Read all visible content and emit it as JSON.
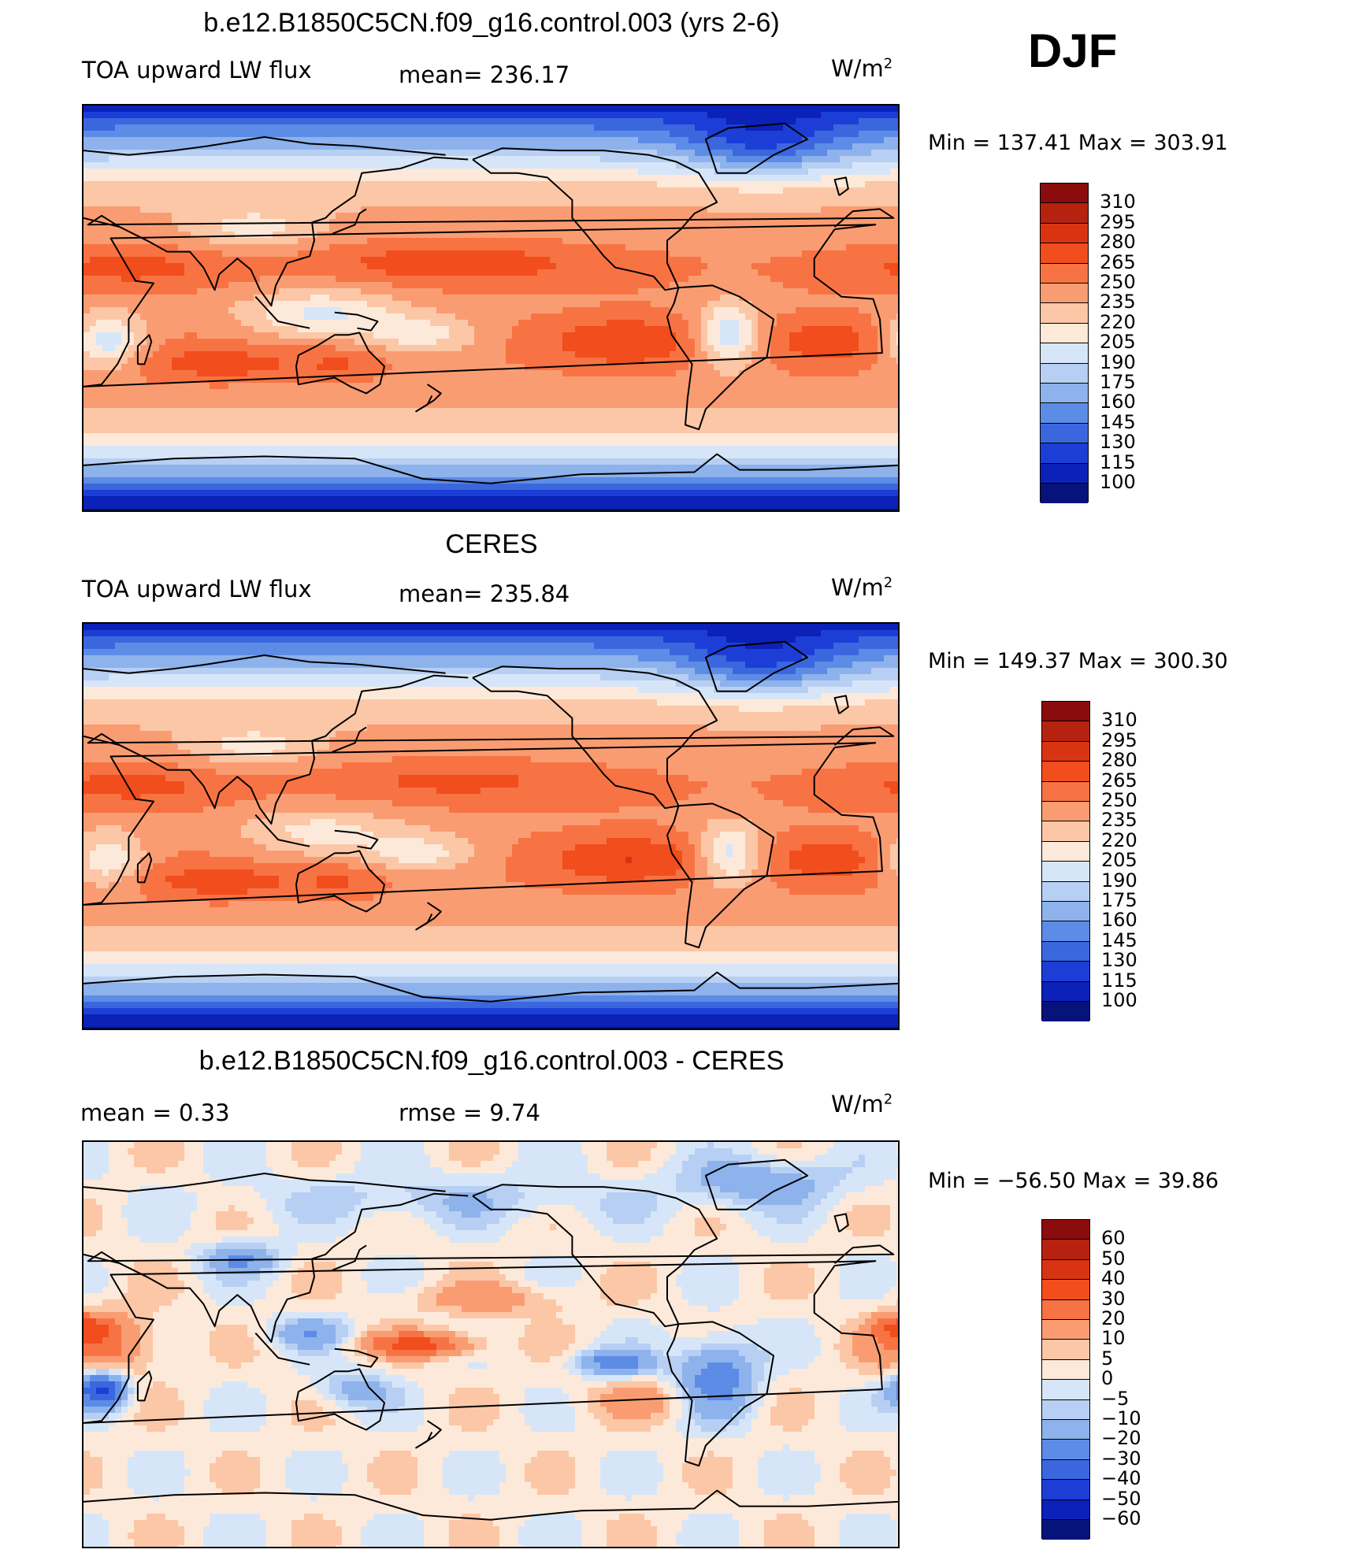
{
  "season": "DJF",
  "units_base": "W/m",
  "units_exp": "2",
  "panels": [
    {
      "title": "b.e12.B1850C5CN.f09_g16.control.003 (yrs 2-6)",
      "left_label": "TOA upward LW flux",
      "middle_label": "mean= 236.17",
      "minmax": "Min  =  137.41  Max  =  303.91",
      "colorbar": {
        "labels": [
          "310",
          "295",
          "280",
          "265",
          "250",
          "235",
          "220",
          "205",
          "190",
          "175",
          "160",
          "145",
          "130",
          "115",
          "100"
        ],
        "colors": [
          "#8b0c0c",
          "#b62210",
          "#d93412",
          "#f24d1d",
          "#f87343",
          "#fa9c72",
          "#fcc7a6",
          "#fde9d9",
          "#d6e6f8",
          "#b7cff3",
          "#8db2ec",
          "#5d8ce6",
          "#3b67de",
          "#1c3ed6",
          "#0b21b8",
          "#05137a"
        ]
      },
      "scalar_field": "model"
    },
    {
      "title": "CERES",
      "left_label": "TOA upward LW flux",
      "middle_label": "mean= 235.84",
      "minmax": "Min  =  149.37  Max  =  300.30",
      "colorbar": {
        "labels": [
          "310",
          "295",
          "280",
          "265",
          "250",
          "235",
          "220",
          "205",
          "190",
          "175",
          "160",
          "145",
          "130",
          "115",
          "100"
        ],
        "colors": [
          "#8b0c0c",
          "#b62210",
          "#d93412",
          "#f24d1d",
          "#f87343",
          "#fa9c72",
          "#fcc7a6",
          "#fde9d9",
          "#d6e6f8",
          "#b7cff3",
          "#8db2ec",
          "#5d8ce6",
          "#3b67de",
          "#1c3ed6",
          "#0b21b8",
          "#05137a"
        ]
      },
      "scalar_field": "obs"
    },
    {
      "title": "b.e12.B1850C5CN.f09_g16.control.003 - CERES",
      "left_label": "mean =     0.33",
      "middle_label": "rmse =     9.74",
      "minmax": "Min  =  −56.50  Max  =    39.86",
      "colorbar": {
        "labels": [
          "60",
          "50",
          "40",
          "30",
          "20",
          "10",
          "5",
          "0",
          "−5",
          "−10",
          "−20",
          "−30",
          "−40",
          "−50",
          "−60"
        ],
        "colors": [
          "#8b0c0c",
          "#b62210",
          "#d93412",
          "#f24d1d",
          "#f87343",
          "#fa9c72",
          "#fcc7a6",
          "#fde9d9",
          "#d6e6f8",
          "#b7cff3",
          "#8db2ec",
          "#5d8ce6",
          "#3b67de",
          "#1c3ed6",
          "#0b21b8",
          "#05137a"
        ]
      },
      "scalar_field": "diff"
    }
  ]
}
